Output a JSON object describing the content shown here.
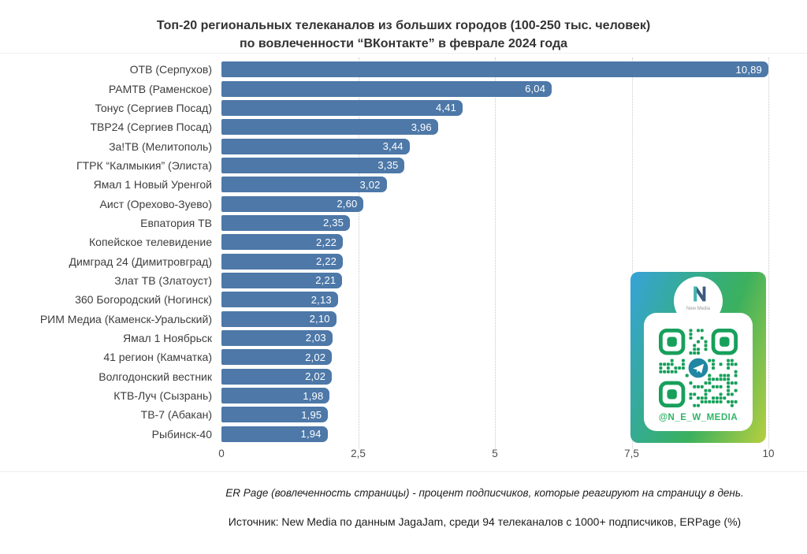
{
  "title": {
    "line1": "Топ-20 региональных телеканалов из больших городов (100-250 тыс. человек)",
    "line2": "по вовлеченности “ВКонтакте” в феврале 2024 года"
  },
  "chart_data": {
    "type": "bar",
    "orientation": "horizontal",
    "categories": [
      "ОТВ (Серпухов)",
      "РАМТВ (Раменское)",
      "Тонус (Сергиев Посад)",
      "ТВР24 (Сергиев Посад)",
      "За!ТВ (Мелитополь)",
      "ГТРК “Калмыкия” (Элиста)",
      "Ямал 1 Новый Уренгой",
      "Аист (Орехово-Зуево)",
      "Евпатория ТВ",
      "Копейское телевидение",
      "Димград 24 (Димитровград)",
      "Злат ТВ (Златоуст)",
      "360 Богородский (Ногинск)",
      "РИМ Медиа (Каменск-Уральский)",
      "Ямал 1 Ноябрьск",
      "41 регион (Камчатка)",
      "Волгодонский вестник",
      "КТВ-Луч (Сызрань)",
      "ТВ-7 (Абакан)",
      "Рыбинск-40"
    ],
    "values": [
      10.89,
      6.04,
      4.41,
      3.96,
      3.44,
      3.35,
      3.02,
      2.6,
      2.35,
      2.22,
      2.22,
      2.21,
      2.13,
      2.1,
      2.03,
      2.02,
      2.02,
      1.98,
      1.95,
      1.94
    ],
    "value_labels": [
      "10,89",
      "6,04",
      "4,41",
      "3,96",
      "3,44",
      "3,35",
      "3,02",
      "2,60",
      "2,35",
      "2,22",
      "2,22",
      "2,21",
      "2,13",
      "2,10",
      "2,03",
      "2,02",
      "2,02",
      "1,98",
      "1,95",
      "1,94"
    ],
    "x_ticks": [
      "0",
      "2,5",
      "5",
      "7,5",
      "10"
    ],
    "x_tick_values": [
      0,
      2.5,
      5,
      7.5,
      10
    ],
    "xlim": [
      0,
      10
    ],
    "xlabel": "",
    "ylabel": "",
    "legend": "none",
    "grid": "vertical dotted lines; top bar (10,89) is clipped at axis max 10",
    "bar_color": "#4d78a8",
    "value_label_color": "#ffffff"
  },
  "footnotes": {
    "definition": "ER Page (вовлеченность страницы) - процент подписчиков, которые реагируют на страницу в день.",
    "source": "Источник: New Media по данным JagaJam, среди 94 телеканалов с 1000+ подписчиков, ERPage (%)"
  },
  "badge": {
    "logo_text": "New Media",
    "handle": "@N_E_W_MEDIA",
    "qr_color": "#17a05b",
    "gradient": [
      "#36a3d9",
      "#3bb06c",
      "#b6cf3f"
    ],
    "telegram_color": "#1f87a3"
  }
}
